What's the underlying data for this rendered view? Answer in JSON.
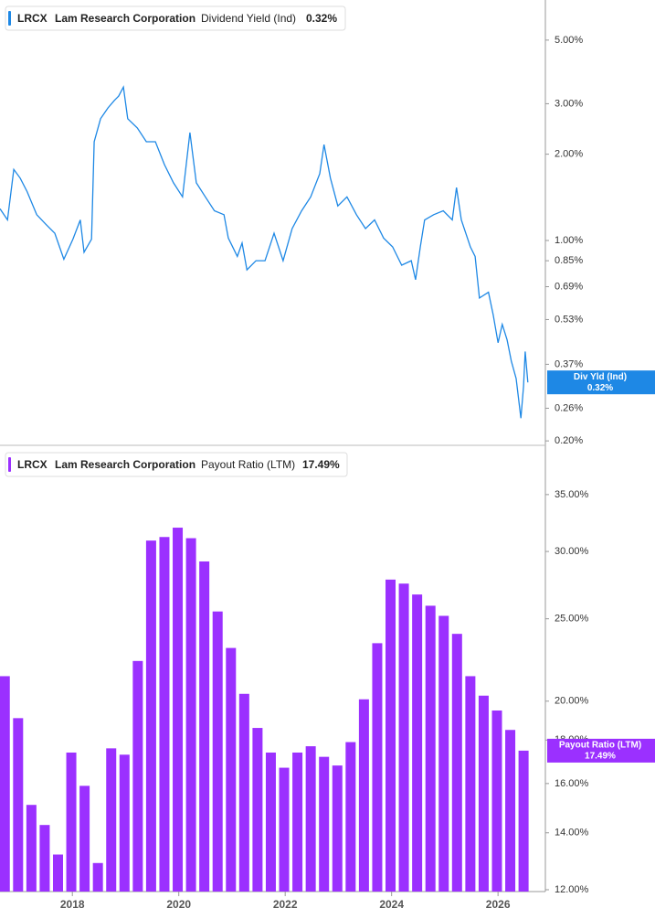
{
  "chart_data": [
    {
      "type": "line",
      "ticker": "LRCX",
      "company": "Lam Research Corporation",
      "legend_value": "0.32%",
      "tag_label": "Div Yld (Ind)",
      "log_scale": true,
      "xlim": [
        2016.64,
        2026.89
      ],
      "ylim": [
        0.193,
        6.9
      ],
      "yticks": [
        {
          "value": 5,
          "label": "5.00%"
        },
        {
          "value": 3,
          "label": "3.00%"
        },
        {
          "value": 2,
          "label": "2.00%"
        },
        {
          "value": 1,
          "label": "1.00%"
        },
        {
          "value": 0.85,
          "label": "0.85%"
        },
        {
          "value": 0.69,
          "label": "0.69%"
        },
        {
          "value": 0.53,
          "label": "0.53%"
        },
        {
          "value": 0.37,
          "label": "0.37%"
        },
        {
          "value": 0.26,
          "label": "0.26%"
        },
        {
          "value": 0.2,
          "label": "0.20%"
        }
      ],
      "series": [
        {
          "name": "Dividend Yield (Ind)",
          "color": "#1e88e5",
          "x": [
            2016.64,
            2016.78,
            2016.9,
            2017.02,
            2017.15,
            2017.33,
            2017.5,
            2017.67,
            2017.84,
            2018.01,
            2018.15,
            2018.22,
            2018.36,
            2018.41,
            2018.53,
            2018.67,
            2018.79,
            2018.87,
            2018.96,
            2019.04,
            2019.22,
            2019.39,
            2019.56,
            2019.73,
            2019.9,
            2020.07,
            2020.21,
            2020.33,
            2020.5,
            2020.67,
            2020.85,
            2020.93,
            2021.1,
            2021.19,
            2021.28,
            2021.45,
            2021.62,
            2021.79,
            2021.96,
            2022.13,
            2022.31,
            2022.48,
            2022.65,
            2022.73,
            2022.85,
            2022.99,
            2023.16,
            2023.34,
            2023.51,
            2023.68,
            2023.85,
            2024.02,
            2024.19,
            2024.37,
            2024.45,
            2024.54,
            2024.62,
            2024.79,
            2024.97,
            2025.14,
            2025.22,
            2025.31,
            2025.48,
            2025.57,
            2025.65,
            2025.82,
            2025.91,
            2026.0,
            2026.08,
            2026.17,
            2026.25,
            2026.34,
            2026.43,
            2026.48,
            2026.51,
            2026.56
          ],
          "values": [
            1.29,
            1.18,
            1.77,
            1.65,
            1.48,
            1.23,
            1.14,
            1.06,
            0.86,
            1.01,
            1.18,
            0.91,
            1.01,
            2.21,
            2.66,
            2.9,
            3.08,
            3.19,
            3.43,
            2.66,
            2.47,
            2.21,
            2.21,
            1.84,
            1.59,
            1.42,
            2.38,
            1.59,
            1.42,
            1.27,
            1.23,
            1.02,
            0.88,
            0.98,
            0.79,
            0.85,
            0.85,
            1.06,
            0.85,
            1.1,
            1.27,
            1.42,
            1.71,
            2.16,
            1.65,
            1.32,
            1.42,
            1.23,
            1.1,
            1.18,
            1.02,
            0.95,
            0.82,
            0.85,
            0.73,
            0.95,
            1.18,
            1.23,
            1.27,
            1.18,
            1.53,
            1.18,
            0.95,
            0.88,
            0.63,
            0.66,
            0.55,
            0.44,
            0.51,
            0.45,
            0.38,
            0.33,
            0.24,
            0.31,
            0.41,
            0.32
          ]
        }
      ]
    },
    {
      "type": "bar",
      "ticker": "LRCX",
      "company": "Lam Research Corporation",
      "legend_value": "17.49%",
      "tag_label": "Payout Ratio (LTM)",
      "log_scale": true,
      "xlim": [
        2016.64,
        2026.89
      ],
      "ylim": [
        11.94,
        39.7
      ],
      "xticks": [
        2018,
        2020,
        2022,
        2024,
        2026
      ],
      "yticks": [
        {
          "value": 35,
          "label": "35.00%"
        },
        {
          "value": 30,
          "label": "30.00%"
        },
        {
          "value": 25,
          "label": "25.00%"
        },
        {
          "value": 20,
          "label": "20.00%"
        },
        {
          "value": 18,
          "label": "18.00%"
        },
        {
          "value": 16,
          "label": "16.00%"
        },
        {
          "value": 14,
          "label": "14.00%"
        },
        {
          "value": 12,
          "label": "12.00%"
        }
      ],
      "series": [
        {
          "name": "Payout Ratio (LTM)",
          "color": "#9b30ff",
          "x": [
            2016.73,
            2016.98,
            2017.23,
            2017.48,
            2017.73,
            2017.98,
            2018.23,
            2018.48,
            2018.73,
            2018.98,
            2019.23,
            2019.48,
            2019.73,
            2019.98,
            2020.23,
            2020.48,
            2020.73,
            2020.98,
            2021.23,
            2021.48,
            2021.73,
            2021.98,
            2022.23,
            2022.48,
            2022.73,
            2022.98,
            2023.23,
            2023.48,
            2023.73,
            2023.98,
            2024.23,
            2024.48,
            2024.73,
            2024.98,
            2025.23,
            2025.48,
            2025.73,
            2025.98,
            2026.23,
            2026.48
          ],
          "values": [
            21.4,
            19.1,
            15.1,
            14.3,
            13.2,
            17.4,
            15.9,
            12.9,
            17.6,
            17.3,
            22.3,
            30.9,
            31.2,
            32.0,
            31.1,
            29.2,
            25.5,
            23.1,
            20.4,
            18.6,
            17.4,
            16.7,
            17.4,
            17.7,
            17.2,
            16.8,
            17.9,
            20.1,
            23.4,
            27.8,
            27.5,
            26.7,
            25.9,
            25.2,
            24.0,
            21.4,
            20.3,
            19.5,
            18.5,
            17.49
          ]
        }
      ]
    }
  ]
}
